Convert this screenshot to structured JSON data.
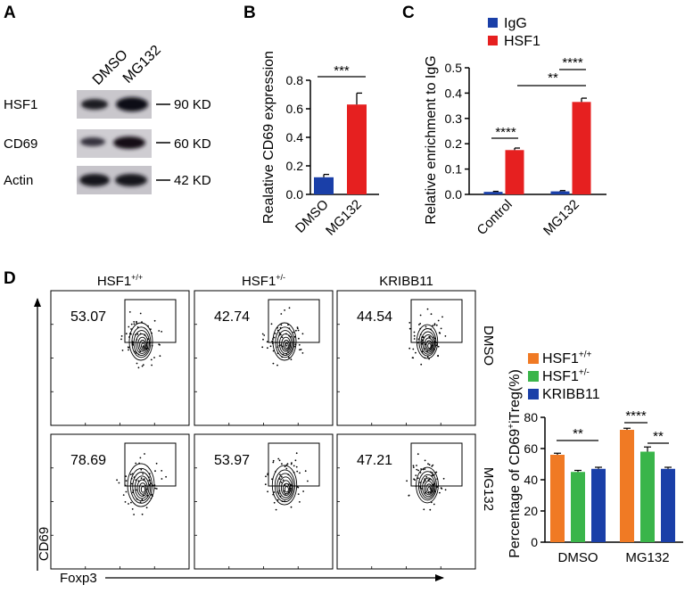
{
  "panels": {
    "A": {
      "letter": "A",
      "lanes": [
        "DMSO",
        "MG132"
      ],
      "blots": [
        {
          "label": "HSF1",
          "size": "90 KD"
        },
        {
          "label": "CD69",
          "size": "60 KD"
        },
        {
          "label": "Actin",
          "size": "42 KD"
        }
      ]
    },
    "B": {
      "letter": "B"
    },
    "C": {
      "letter": "C"
    },
    "D": {
      "letter": "D",
      "columns": [
        {
          "base": "HSF1",
          "sup": "+/+"
        },
        {
          "base": "HSF1",
          "sup": "+/-"
        },
        {
          "base": "KRIBB11",
          "sup": ""
        }
      ],
      "rows": [
        "DMSO",
        "MG132"
      ],
      "gate_values": [
        [
          "53.07",
          "42.74",
          "44.54"
        ],
        [
          "78.69",
          "53.97",
          "47.21"
        ]
      ],
      "y_axis": "CD69",
      "x_axis": "Foxp3"
    }
  },
  "chart_data": [
    {
      "id": "B",
      "type": "bar",
      "categories": [
        "DMSO",
        "MG132"
      ],
      "values": [
        0.12,
        0.63
      ],
      "errors": [
        0.02,
        0.08
      ],
      "colors": [
        "#1a3fa8",
        "#e62020"
      ],
      "ylabel": "Realative CD69 expression",
      "ylim": [
        0,
        0.8
      ],
      "yticks": [
        "0.0",
        "0.2",
        "0.4",
        "0.6",
        "0.8"
      ],
      "significance": [
        {
          "label": "***",
          "from": 0,
          "to": 1
        }
      ]
    },
    {
      "id": "C",
      "type": "bar",
      "categories": [
        "Control",
        "MG132"
      ],
      "series": [
        {
          "name": "IgG",
          "values": [
            0.01,
            0.012
          ],
          "errors": [
            0.002,
            0.003
          ],
          "color": "#1a3fa8"
        },
        {
          "name": "HSF1",
          "values": [
            0.175,
            0.365
          ],
          "errors": [
            0.008,
            0.015
          ],
          "color": "#e62020"
        }
      ],
      "ylabel": "Relative enrichment to IgG",
      "ylim": [
        0,
        0.5
      ],
      "yticks": [
        "0.0",
        "0.1",
        "0.2",
        "0.3",
        "0.4",
        "0.5"
      ],
      "significance": [
        {
          "label": "****",
          "group": "Control"
        },
        {
          "label": "****",
          "group": "MG132"
        },
        {
          "label": "**",
          "between": "HSF1 Control vs HSF1 MG132"
        }
      ]
    },
    {
      "id": "D-bar",
      "type": "bar",
      "categories": [
        "DMSO",
        "MG132"
      ],
      "series": [
        {
          "name": "HSF1",
          "sup": "+/+",
          "values": [
            56,
            72
          ],
          "errors": [
            1,
            1
          ],
          "color": "#f07a24"
        },
        {
          "name": "HSF1",
          "sup": "+/-",
          "values": [
            45,
            58
          ],
          "errors": [
            1,
            3
          ],
          "color": "#3ab54a"
        },
        {
          "name": "KRIBB11",
          "sup": "",
          "values": [
            47,
            47
          ],
          "errors": [
            1,
            1
          ],
          "color": "#1a3fa8"
        }
      ],
      "ylabel_base": "Percentage of CD69",
      "ylabel_sup": "+",
      "ylabel_tail": "iTreg(%)",
      "ylim": [
        0,
        80
      ],
      "yticks": [
        "0",
        "20",
        "40",
        "60",
        "80"
      ],
      "significance": [
        {
          "label": "**",
          "group": "DMSO"
        },
        {
          "label": "****",
          "group": "MG132"
        },
        {
          "label": "**",
          "group": "MG132"
        }
      ]
    }
  ]
}
